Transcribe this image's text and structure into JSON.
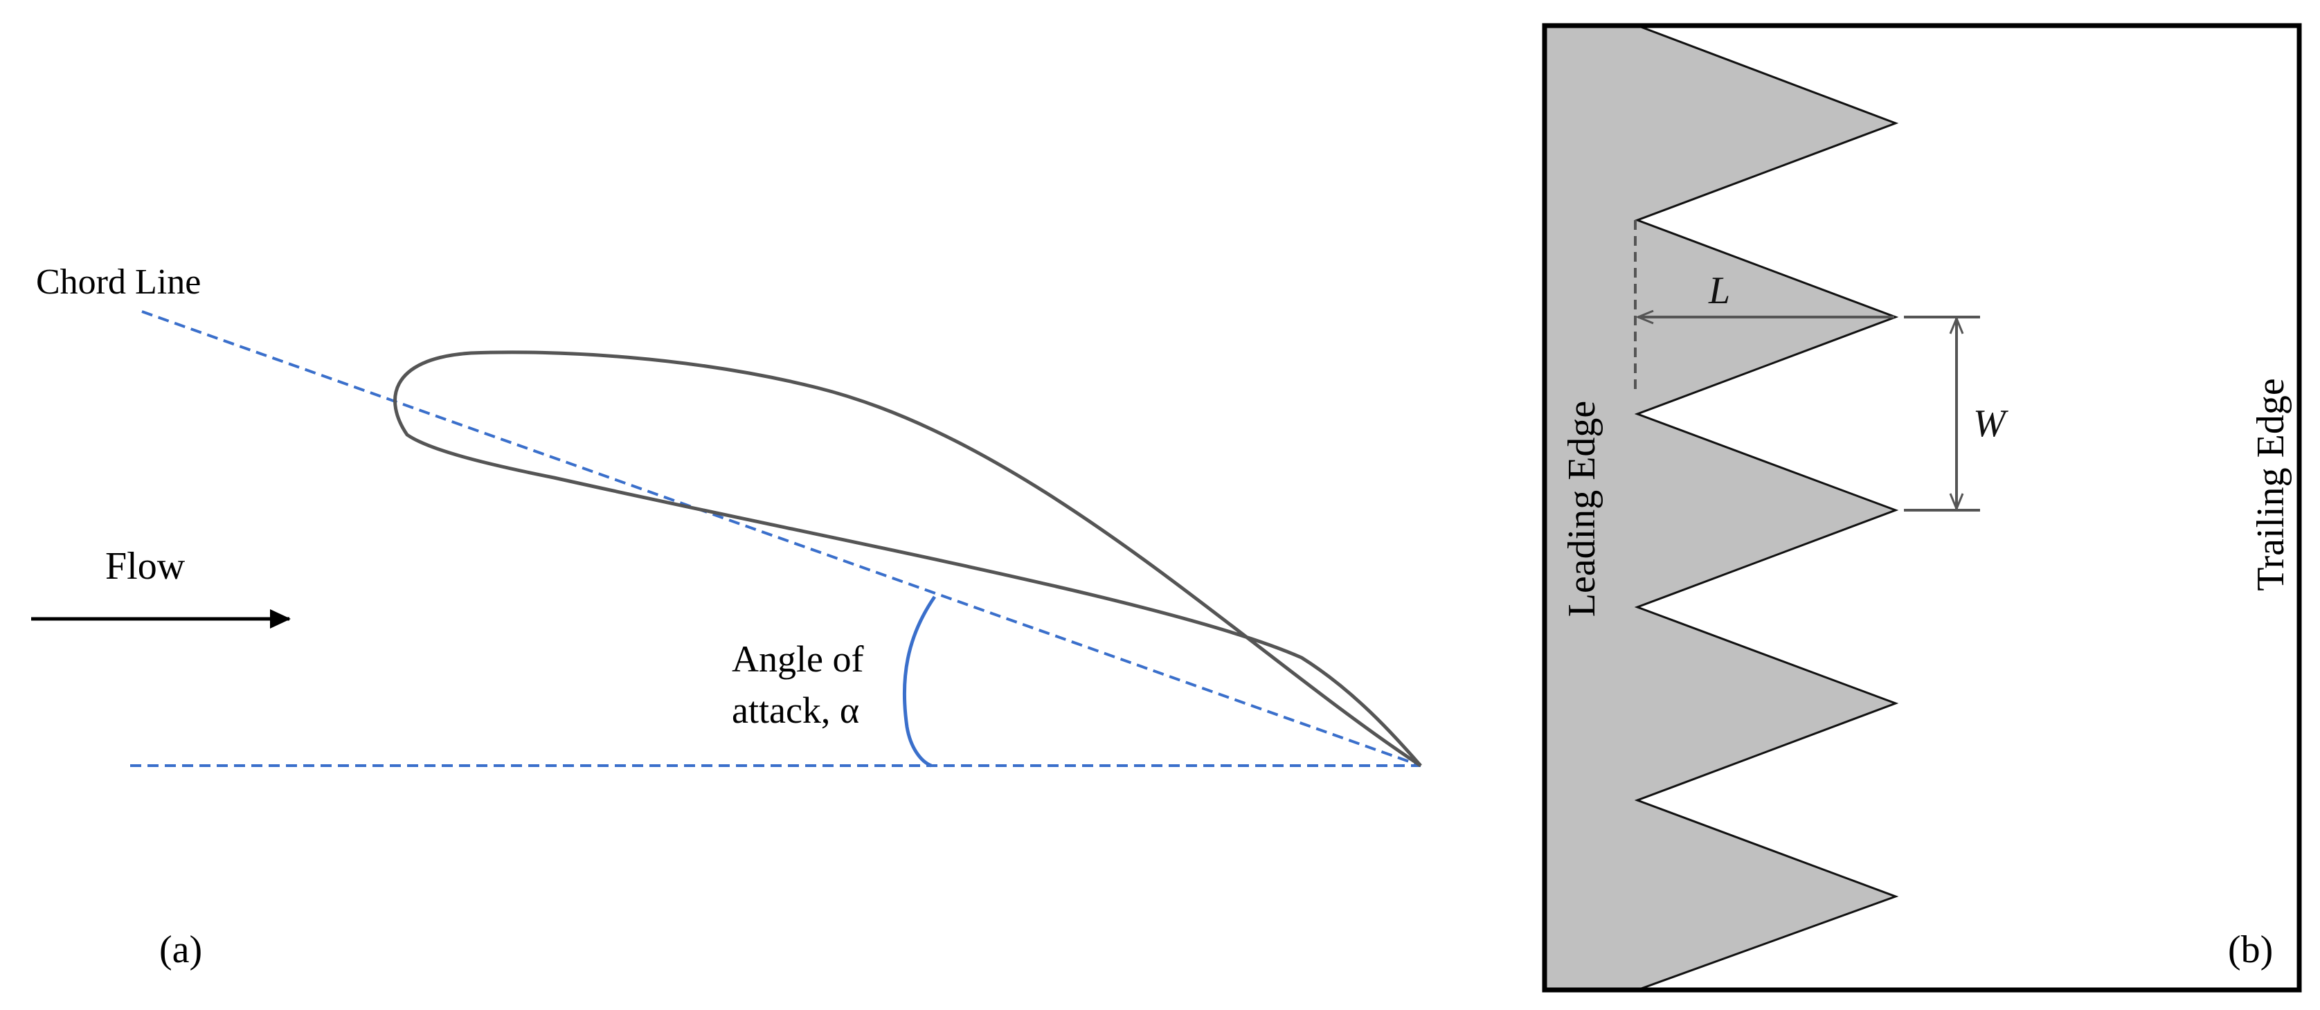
{
  "panel_a": {
    "chord_line_label": "Chord Line",
    "flow_label": "Flow",
    "angle_label_line1": "Angle of",
    "angle_label_line2": "attack, α",
    "panel_label": "(a)"
  },
  "panel_b": {
    "length_label": "L",
    "width_label": "W",
    "leading_edge_label": "Leading Edge",
    "trailing_edge_label": "Trailing Edge",
    "panel_label": "(b)"
  },
  "colors": {
    "reference_line": "#3a6fcb",
    "airfoil_outline": "#555555",
    "serration_fill": "#c0c0c0",
    "dimension_lines": "#555555"
  }
}
